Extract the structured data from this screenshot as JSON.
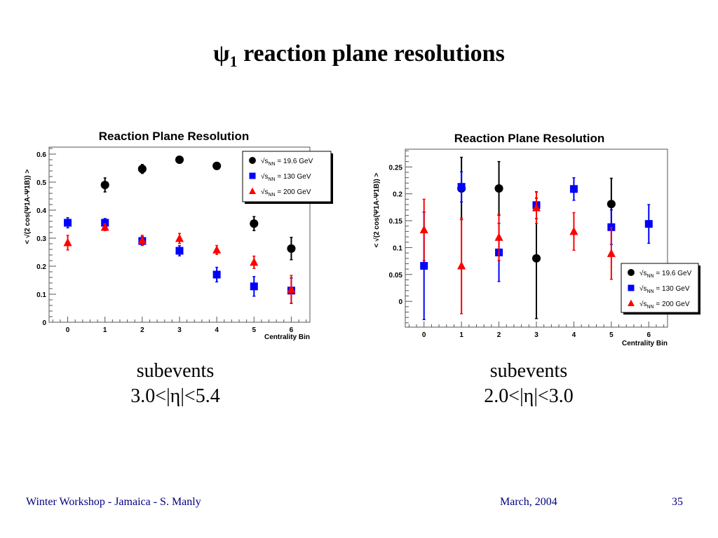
{
  "slide": {
    "title_symbol": "ψ",
    "title_subscript": "1",
    "title_text": " reaction plane resolutions",
    "footer_left": "Winter Workshop - Jamaica - S. Manly",
    "footer_date": "March, 2004",
    "footer_page": "35"
  },
  "captions": [
    {
      "line1": "subevents",
      "line2": "3.0<|η|<5.4"
    },
    {
      "line1": "subevents",
      "line2": "2.0<|η|<3.0"
    }
  ],
  "chart_data": [
    {
      "type": "scatter",
      "title": "Reaction Plane Resolution",
      "xlabel": "Centrality Bin",
      "ylabel": "< √(2 cos(Ψ1A-Ψ1B)) >",
      "xlim": [
        -0.5,
        6.5
      ],
      "ylim": [
        0,
        0.625
      ],
      "xticks": [
        "0",
        "1",
        "2",
        "3",
        "4",
        "5",
        "6"
      ],
      "yticks": [
        "0",
        "0.1",
        "0.2",
        "0.3",
        "0.4",
        "0.5",
        "0.6"
      ],
      "ytick_values": [
        0,
        0.1,
        0.2,
        0.3,
        0.4,
        0.5,
        0.6
      ],
      "grid": false,
      "legend_position": "top-right",
      "series": [
        {
          "name": "√sNN = 19.6 GeV",
          "label_prefix": "√s",
          "label_sub": "NN",
          "label_suffix": " = 19.6 GeV",
          "marker": "circle",
          "color": "#000000",
          "x": [
            1,
            2,
            3,
            4,
            5,
            6
          ],
          "y": [
            0.49,
            0.547,
            0.58,
            0.558,
            0.352,
            0.263
          ],
          "err": [
            0.025,
            0.016,
            0.012,
            0.011,
            0.025,
            0.04
          ]
        },
        {
          "name": "√sNN = 130 GeV",
          "label_prefix": "√s",
          "label_sub": "NN",
          "label_suffix": " = 130 GeV",
          "marker": "square",
          "color": "#0000ff",
          "x": [
            0,
            1,
            2,
            3,
            4,
            5,
            6
          ],
          "y": [
            0.355,
            0.355,
            0.29,
            0.255,
            0.17,
            0.128,
            0.113
          ],
          "err": [
            0.018,
            0.015,
            0.016,
            0.018,
            0.026,
            0.035,
            0.045
          ]
        },
        {
          "name": "√sNN = 200 GeV",
          "label_prefix": "√s",
          "label_sub": "NN",
          "label_suffix": " = 200 GeV",
          "marker": "triangle",
          "color": "#ff0000",
          "x": [
            0,
            1,
            2,
            3,
            4,
            5,
            6
          ],
          "y": [
            0.284,
            0.339,
            0.292,
            0.299,
            0.258,
            0.214,
            0.117
          ],
          "err": [
            0.026,
            0.012,
            0.018,
            0.018,
            0.016,
            0.022,
            0.05
          ]
        }
      ]
    },
    {
      "type": "scatter",
      "title": "Reaction Plane Resolution",
      "xlabel": "Centrality Bin",
      "ylabel": "< √(2 cos(Ψ1A-Ψ1B)) >",
      "xlim": [
        -0.5,
        6.5
      ],
      "ylim": [
        -0.048,
        0.283
      ],
      "xticks": [
        "0",
        "1",
        "2",
        "3",
        "4",
        "5",
        "6"
      ],
      "yticks": [
        "0",
        "0.05",
        "0.1",
        "0.15",
        "0.2",
        "0.25"
      ],
      "ytick_values": [
        0,
        0.05,
        0.1,
        0.15,
        0.2,
        0.25
      ],
      "grid": false,
      "legend_position": "bottom-right",
      "series": [
        {
          "name": "√sNN = 19.6 GeV",
          "label_prefix": "√s",
          "label_sub": "NN",
          "label_suffix": " = 19.6 GeV",
          "marker": "circle",
          "color": "#000000",
          "x": [
            1,
            2,
            3,
            5
          ],
          "y": [
            0.21,
            0.21,
            0.08,
            0.181
          ],
          "err": [
            0.058,
            0.05,
            0.112,
            0.048
          ]
        },
        {
          "name": "√sNN = 130 GeV",
          "label_prefix": "√s",
          "label_sub": "NN",
          "label_suffix": " = 130 GeV",
          "marker": "square",
          "color": "#0000ff",
          "x": [
            0,
            1,
            2,
            3,
            4,
            5,
            6
          ],
          "y": [
            0.066,
            0.213,
            0.091,
            0.179,
            0.209,
            0.138,
            0.144
          ],
          "err": [
            0.1,
            0.028,
            0.054,
            0.025,
            0.021,
            0.032,
            0.036
          ]
        },
        {
          "name": "√sNN = 200 GeV",
          "label_prefix": "√s",
          "label_sub": "NN",
          "label_suffix": " = 200 GeV",
          "marker": "triangle",
          "color": "#ff0000",
          "x": [
            0,
            1,
            2,
            3,
            4,
            5
          ],
          "y": [
            0.133,
            0.066,
            0.119,
            0.174,
            0.13,
            0.089
          ],
          "err": [
            0.057,
            0.089,
            0.043,
            0.029,
            0.035,
            0.048
          ]
        }
      ]
    }
  ]
}
